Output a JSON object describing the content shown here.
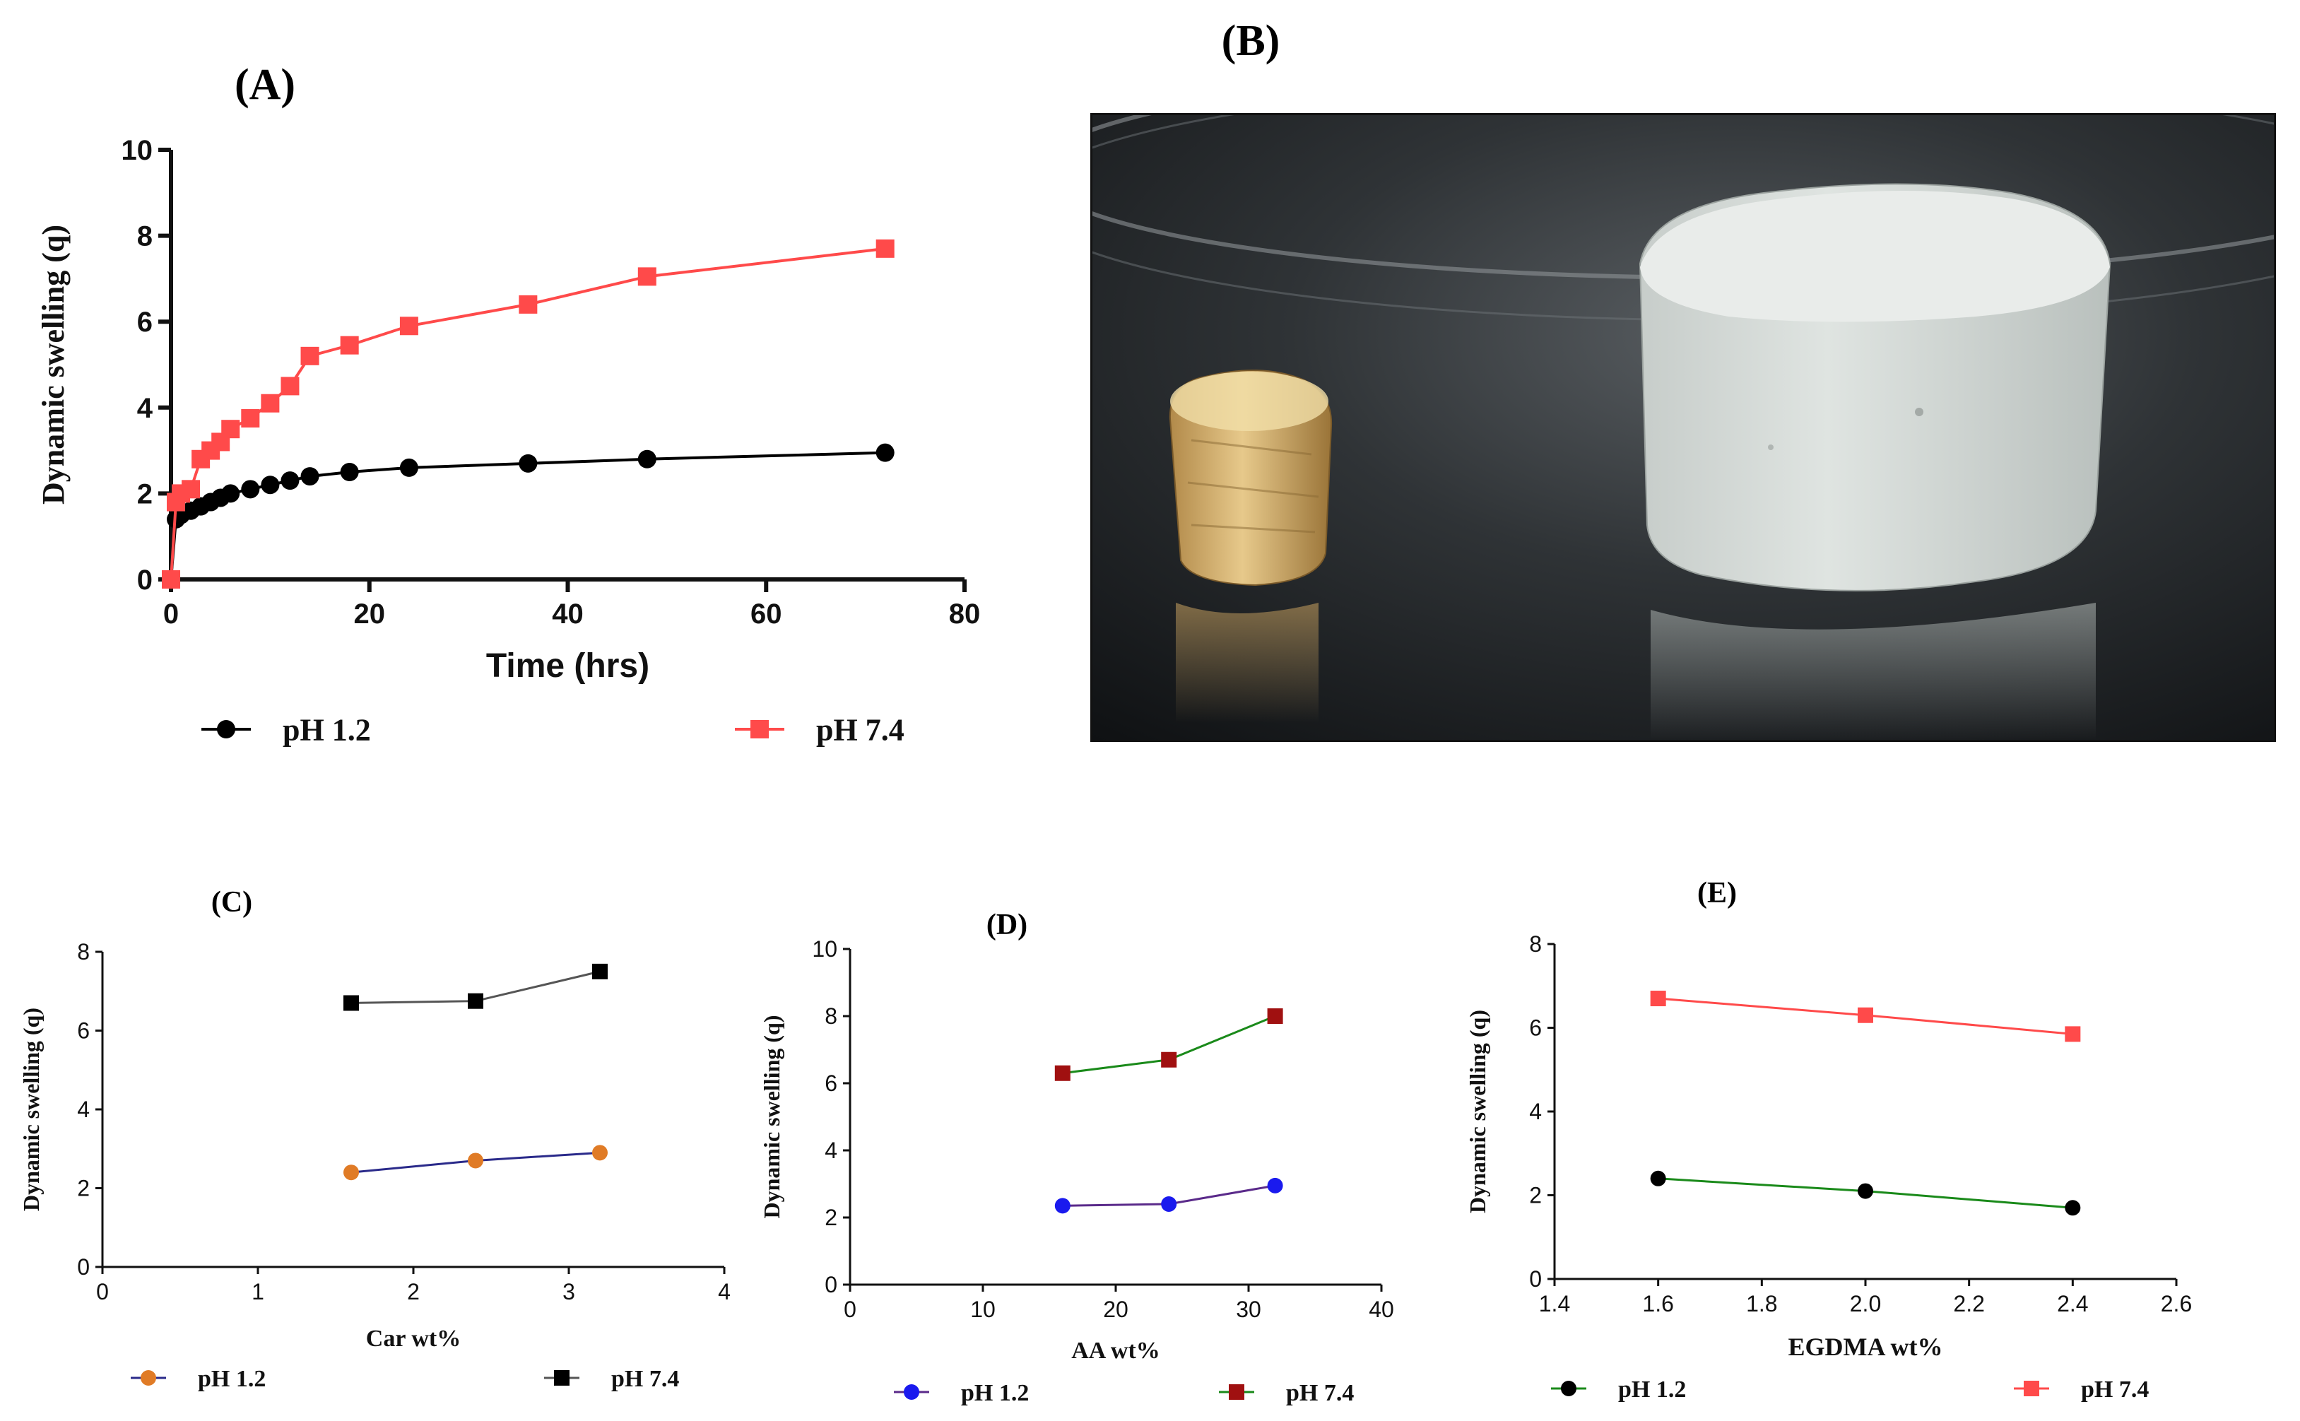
{
  "panels": {
    "A": {
      "label": "(A)"
    },
    "B": {
      "label": "(B)"
    },
    "C": {
      "label": "(C)"
    },
    "D": {
      "label": "(D)"
    },
    "E": {
      "label": "(E)"
    }
  },
  "photo": {
    "description_icon": "hydrogel-photo-icon"
  },
  "chart_data": [
    {
      "id": "A",
      "type": "line",
      "title": "(A)",
      "xlabel": "Time (hrs)",
      "ylabel": "Dynamic swelling (q)",
      "xlim": [
        0,
        80
      ],
      "ylim": [
        0,
        10
      ],
      "xticks": [
        0,
        20,
        40,
        60,
        80
      ],
      "yticks": [
        0,
        2,
        4,
        6,
        8,
        10
      ],
      "legend": "bottom",
      "series": [
        {
          "name": "pH 1.2",
          "color": "#000000",
          "marker": "circle",
          "x": [
            0,
            0.5,
            1,
            2,
            3,
            4,
            5,
            6,
            8,
            10,
            12,
            14,
            18,
            24,
            36,
            48,
            72
          ],
          "y": [
            0,
            1.4,
            1.5,
            1.6,
            1.7,
            1.8,
            1.9,
            2.0,
            2.1,
            2.2,
            2.3,
            2.4,
            2.5,
            2.6,
            2.7,
            2.8,
            2.95
          ]
        },
        {
          "name": "pH 7.4",
          "color": "#ff4a4a",
          "marker": "square",
          "x": [
            0,
            0.5,
            1,
            2,
            3,
            4,
            5,
            6,
            8,
            10,
            12,
            14,
            18,
            24,
            36,
            48,
            72
          ],
          "y": [
            0,
            1.8,
            2.0,
            2.1,
            2.8,
            3.0,
            3.2,
            3.5,
            3.75,
            4.1,
            4.5,
            5.2,
            5.45,
            5.9,
            6.4,
            7.05,
            7.7
          ]
        }
      ]
    },
    {
      "id": "C",
      "type": "line",
      "title": "(C)",
      "xlabel": "Car wt%",
      "ylabel": "Dynamic swelling (q)",
      "xlim": [
        0,
        4
      ],
      "ylim": [
        0,
        8
      ],
      "xticks": [
        0,
        1,
        2,
        3,
        4
      ],
      "yticks": [
        0,
        2,
        4,
        6,
        8
      ],
      "legend": "bottom",
      "series": [
        {
          "name": "pH 1.2",
          "color": "#e07b26",
          "line_color": "#2a2a8a",
          "marker": "circle",
          "x": [
            1.6,
            2.4,
            3.2
          ],
          "y": [
            2.4,
            2.7,
            2.9
          ]
        },
        {
          "name": "pH 7.4",
          "color": "#000000",
          "line_color": "#555555",
          "marker": "square",
          "x": [
            1.6,
            2.4,
            3.2
          ],
          "y": [
            6.7,
            6.75,
            7.5
          ]
        }
      ]
    },
    {
      "id": "D",
      "type": "line",
      "title": "(D)",
      "xlabel": "AA wt%",
      "ylabel": "Dynamic swelling (q)",
      "xlim": [
        0,
        40
      ],
      "ylim": [
        0,
        10
      ],
      "xticks": [
        0,
        10,
        20,
        30,
        40
      ],
      "yticks": [
        0,
        2,
        4,
        6,
        8,
        10
      ],
      "legend": "bottom",
      "series": [
        {
          "name": "pH 1.2",
          "color": "#1a1aee",
          "line_color": "#5a2a8a",
          "marker": "circle",
          "x": [
            16,
            24,
            32
          ],
          "y": [
            2.35,
            2.4,
            2.95
          ]
        },
        {
          "name": "pH 7.4",
          "color": "#a01010",
          "line_color": "#1a8a1a",
          "marker": "square",
          "x": [
            16,
            24,
            32
          ],
          "y": [
            6.3,
            6.7,
            8.0
          ]
        }
      ]
    },
    {
      "id": "E",
      "type": "line",
      "title": "(E)",
      "xlabel": "EGDMA wt%",
      "ylabel": "Dynamic swelling (q)",
      "xlim": [
        1.4,
        2.6
      ],
      "ylim": [
        0,
        8
      ],
      "xticks": [
        "1.4",
        "1.6",
        "1.8",
        "2.0",
        "2.2",
        "2.4",
        "2.6"
      ],
      "yticks": [
        0,
        2,
        4,
        6,
        8
      ],
      "legend": "bottom",
      "series": [
        {
          "name": "pH 1.2",
          "color": "#000000",
          "line_color": "#1a8a1a",
          "marker": "circle",
          "x": [
            1.6,
            2.0,
            2.4
          ],
          "y": [
            2.4,
            2.1,
            1.7
          ]
        },
        {
          "name": "pH 7.4",
          "color": "#ff4a4a",
          "line_color": "#ff4a4a",
          "marker": "square",
          "x": [
            1.6,
            2.0,
            2.4
          ],
          "y": [
            6.7,
            6.3,
            5.85
          ]
        }
      ]
    }
  ]
}
